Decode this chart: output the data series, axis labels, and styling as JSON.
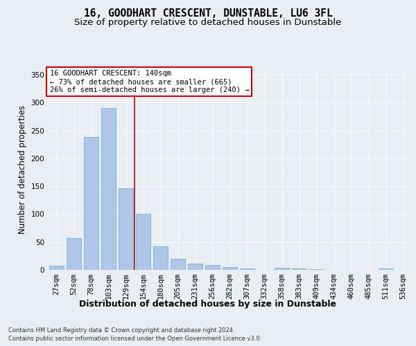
{
  "title": "16, GOODHART CRESCENT, DUNSTABLE, LU6 3FL",
  "subtitle": "Size of property relative to detached houses in Dunstable",
  "xlabel": "Distribution of detached houses by size in Dunstable",
  "ylabel": "Number of detached properties",
  "bar_labels": [
    "27sqm",
    "52sqm",
    "78sqm",
    "103sqm",
    "129sqm",
    "154sqm",
    "180sqm",
    "205sqm",
    "231sqm",
    "256sqm",
    "282sqm",
    "307sqm",
    "332sqm",
    "358sqm",
    "383sqm",
    "409sqm",
    "434sqm",
    "460sqm",
    "485sqm",
    "511sqm",
    "536sqm"
  ],
  "bar_values": [
    8,
    57,
    238,
    291,
    146,
    100,
    42,
    20,
    11,
    9,
    5,
    3,
    0,
    4,
    3,
    1,
    0,
    0,
    0,
    3,
    0
  ],
  "bar_color": "#aec6e8",
  "bar_edgecolor": "#7aafd4",
  "ylim": [
    0,
    360
  ],
  "yticks": [
    0,
    50,
    100,
    150,
    200,
    250,
    300,
    350
  ],
  "vline_x": 4.5,
  "annotation_line1": "16 GOODHART CRESCENT: 140sqm",
  "annotation_line2": "← 73% of detached houses are smaller (665)",
  "annotation_line3": "26% of semi-detached houses are larger (240) →",
  "annotation_box_color": "#ffffff",
  "annotation_box_edgecolor": "#cc0000",
  "vline_color": "#cc0000",
  "background_color": "#e8eef4",
  "plot_background": "#e8eef4",
  "grid_color": "#ffffff",
  "footer_line1": "Contains HM Land Registry data © Crown copyright and database right 2024.",
  "footer_line2": "Contains public sector information licensed under the Open Government Licence v3.0.",
  "title_fontsize": 10.5,
  "subtitle_fontsize": 9.5,
  "axis_label_fontsize": 8.5,
  "tick_fontsize": 7.5,
  "annotation_fontsize": 7.5,
  "footer_fontsize": 6.0
}
